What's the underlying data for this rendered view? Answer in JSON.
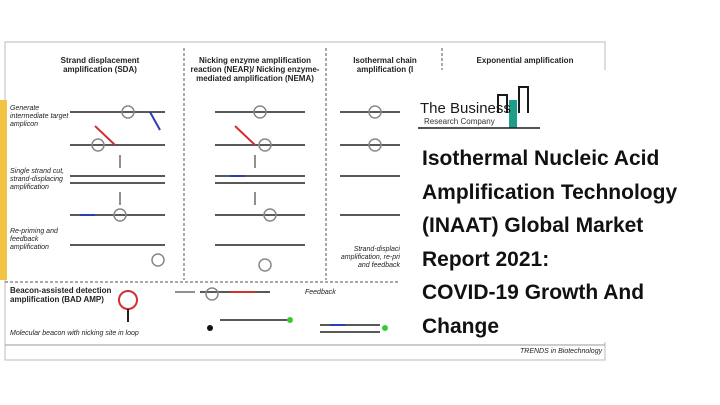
{
  "diagram": {
    "columns": [
      "Strand displacement amplification (SDA)",
      "Nicking enzyme amplification reaction (NEAR)/ Nicking enzyme-mediated amplification (NEMA)",
      "Isothermal chain amplification (I",
      "Exponential amplification"
    ],
    "row_labels": [
      "Generate intermediate target amplicon",
      "Single strand cut, strand-displacing amplification",
      "Re-priming and feedback amplification"
    ],
    "isothermal_note": "Strand-displaci amplification, re-pri and feedback",
    "beacon": {
      "title": "Beacon-assisted detection amplification (BAD AMP)",
      "feedback": "Feedback",
      "caption": "Molecular beacon with nicking site in loop"
    },
    "source": "TRENDS in Biotechnology"
  },
  "logo": {
    "name": "The Business",
    "subtitle": "Research Company"
  },
  "title_lines": [
    "Isothermal Nucleic Acid",
    "Amplification Technology",
    "(INAAT) Global Market",
    "Report 2021:",
    "COVID-19 Growth And",
    "Change"
  ]
}
